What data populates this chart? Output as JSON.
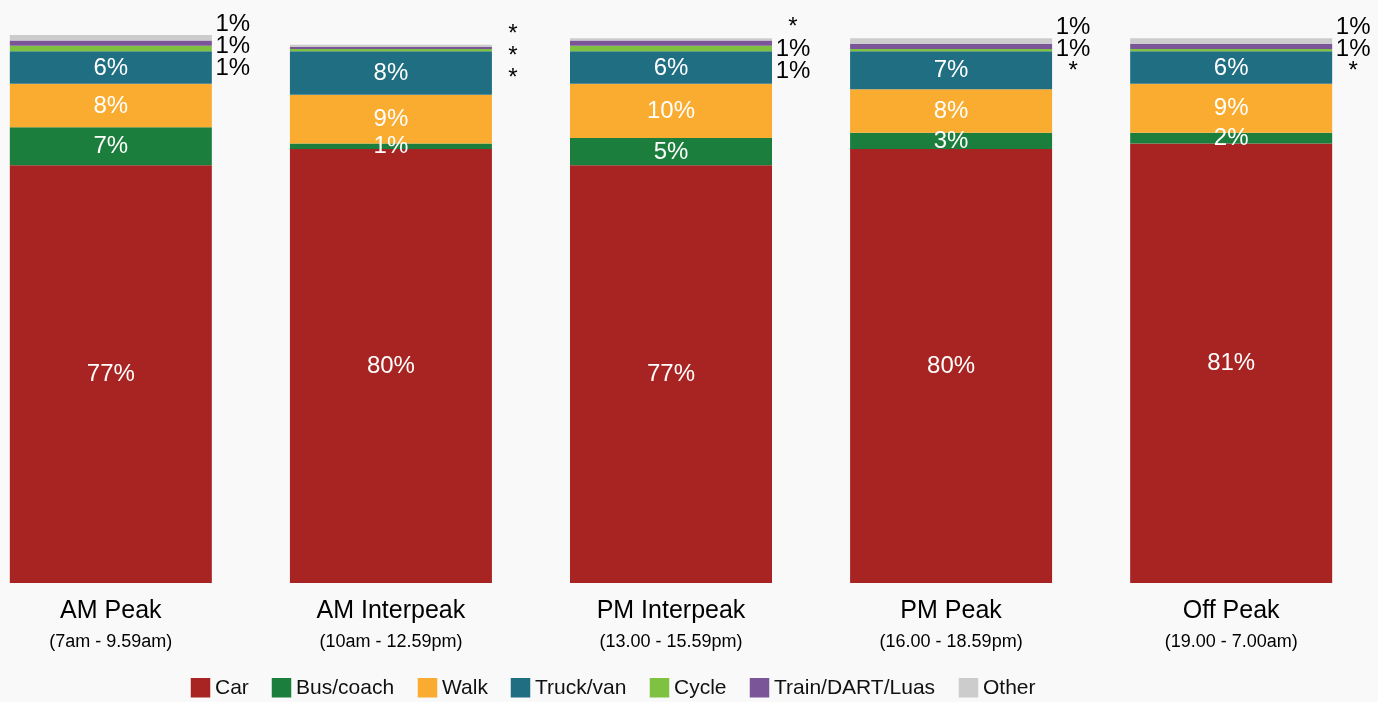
{
  "chart_data": {
    "type": "bar",
    "stacked": true,
    "categories": [
      "AM Peak\n(7am - 9.59am)",
      "AM Interpeak\n(10am - 12.59pm)",
      "PM Interpeak\n(13.00 - 15.59pm)",
      "PM Peak\n(16.00 - 18.59pm)",
      "Off Peak\n(19.00 - 7.00am)"
    ],
    "series": [
      {
        "name": "Car",
        "color": "#a72422",
        "values": [
          77,
          80,
          77,
          80,
          81
        ],
        "value_labels": [
          "77%",
          "80%",
          "77%",
          "80%",
          "81%"
        ]
      },
      {
        "name": "Bus/coach",
        "color": "#1b7e3c",
        "values": [
          7,
          1,
          5,
          3,
          2
        ],
        "value_labels": [
          "7%",
          "1%",
          "5%",
          "3%",
          "2%"
        ]
      },
      {
        "name": "Walk",
        "color": "#f9ac30",
        "values": [
          8,
          9,
          10,
          8,
          9
        ],
        "value_labels": [
          "8%",
          "9%",
          "10%",
          "8%",
          "9%"
        ]
      },
      {
        "name": "Truck/van",
        "color": "#1f6e82",
        "values": [
          6,
          8,
          6,
          7,
          6
        ],
        "value_labels": [
          "6%",
          "8%",
          "6%",
          "7%",
          "6%"
        ]
      },
      {
        "name": "Cycle",
        "color": "#7fc241",
        "values": [
          1,
          0.4,
          1,
          0.4,
          0.4
        ],
        "value_labels": [
          "1%",
          "*",
          "1%",
          "*",
          "*"
        ]
      },
      {
        "name": "Train/DART/Luas",
        "color": "#7a5597",
        "values": [
          1,
          0.4,
          1,
          1,
          1
        ],
        "value_labels": [
          "1%",
          "*",
          "1%",
          "1%",
          "1%"
        ]
      },
      {
        "name": "Other",
        "color": "#cccccc",
        "values": [
          1,
          0.4,
          0.4,
          1,
          1
        ],
        "value_labels": [
          "1%",
          "*",
          "*",
          "1%",
          "1%"
        ]
      }
    ],
    "legend": "bottom"
  }
}
